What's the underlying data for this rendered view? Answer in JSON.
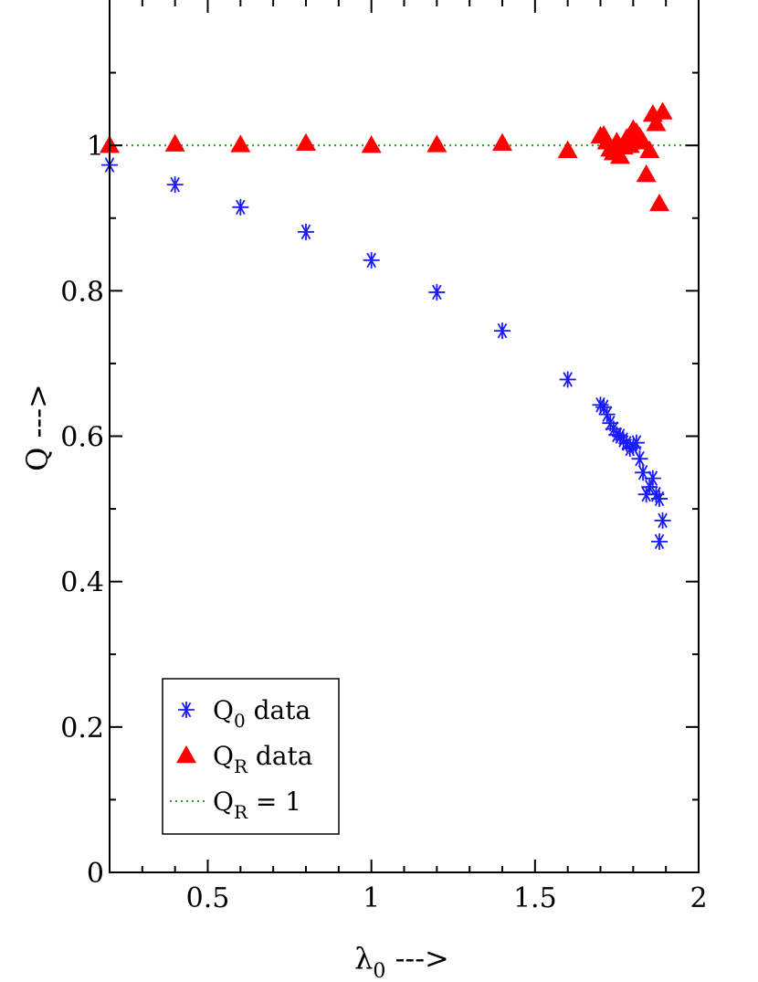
{
  "chart_data": {
    "type": "scatter",
    "title": "",
    "xlabel": "λ0 --->",
    "xlabel_parts": {
      "base": "λ",
      "sub": "0",
      "suffix": " --->"
    },
    "ylabel": "Q --->",
    "xlim": [
      0.2,
      2.0
    ],
    "ylim": [
      0.0,
      1.2
    ],
    "x_ticks": [
      0.5,
      1,
      1.5,
      2
    ],
    "x_tick_labels": [
      "0.5",
      "1",
      "1.5",
      "2"
    ],
    "y_ticks": [
      0,
      0.2,
      0.4,
      0.6,
      0.8,
      1
    ],
    "y_tick_labels": [
      "0",
      "0.2",
      "0.4",
      "0.6",
      "0.8",
      "1"
    ],
    "grid": false,
    "legend_position": "bottom-left",
    "series": [
      {
        "name": "Q0 data",
        "legend": {
          "base": "Q",
          "sub": "0",
          "suffix": " data"
        },
        "marker": "asterisk",
        "color": "#1a1aff",
        "points": [
          [
            0.2,
            0.973
          ],
          [
            0.4,
            0.946
          ],
          [
            0.6,
            0.915
          ],
          [
            0.8,
            0.881
          ],
          [
            1.0,
            0.842
          ],
          [
            1.2,
            0.798
          ],
          [
            1.4,
            0.745
          ],
          [
            1.6,
            0.678
          ],
          [
            1.7,
            0.643
          ],
          [
            1.71,
            0.64
          ],
          [
            1.72,
            0.63
          ],
          [
            1.73,
            0.618
          ],
          [
            1.74,
            0.61
          ],
          [
            1.75,
            0.602
          ],
          [
            1.76,
            0.6
          ],
          [
            1.77,
            0.595
          ],
          [
            1.78,
            0.59
          ],
          [
            1.79,
            0.583
          ],
          [
            1.8,
            0.585
          ],
          [
            1.81,
            0.591
          ],
          [
            1.82,
            0.569
          ],
          [
            1.83,
            0.55
          ],
          [
            1.84,
            0.52
          ],
          [
            1.85,
            0.53
          ],
          [
            1.86,
            0.542
          ],
          [
            1.87,
            0.52
          ],
          [
            1.88,
            0.514
          ],
          [
            1.89,
            0.484
          ],
          [
            1.88,
            0.455
          ]
        ]
      },
      {
        "name": "QR data",
        "legend": {
          "base": "Q",
          "sub": "R",
          "suffix": " data"
        },
        "marker": "triangle",
        "color": "#ff0000",
        "points": [
          [
            0.2,
            1.0
          ],
          [
            0.4,
            1.002
          ],
          [
            0.6,
            1.001
          ],
          [
            0.8,
            1.003
          ],
          [
            1.0,
            1.0
          ],
          [
            1.2,
            1.001
          ],
          [
            1.4,
            1.003
          ],
          [
            1.6,
            0.993
          ],
          [
            1.7,
            1.013
          ],
          [
            1.71,
            1.014
          ],
          [
            1.72,
            1.005
          ],
          [
            1.73,
            0.995
          ],
          [
            1.74,
            0.99
          ],
          [
            1.75,
            1.005
          ],
          [
            1.76,
            0.985
          ],
          [
            1.77,
            0.998
          ],
          [
            1.78,
            1.01
          ],
          [
            1.79,
            1.0
          ],
          [
            1.8,
            1.022
          ],
          [
            1.81,
            1.018
          ],
          [
            1.82,
            1.012
          ],
          [
            1.83,
            1.005
          ],
          [
            1.84,
            0.96
          ],
          [
            1.85,
            0.993
          ],
          [
            1.86,
            1.043
          ],
          [
            1.87,
            1.03
          ],
          [
            1.89,
            1.046
          ],
          [
            1.88,
            0.92
          ]
        ]
      },
      {
        "name": "QR = 1",
        "legend": {
          "base": "Q",
          "sub": "R",
          "suffix": " = 1"
        },
        "marker": "dotted-line",
        "color": "#2ca02c",
        "y_constant": 1.0
      }
    ]
  }
}
